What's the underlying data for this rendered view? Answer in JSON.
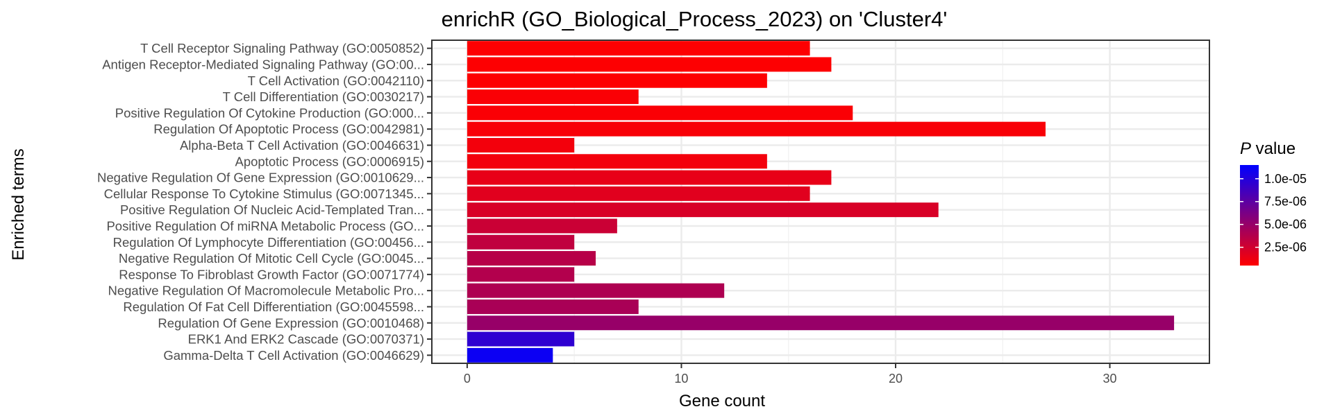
{
  "chart_data": {
    "type": "bar",
    "orientation": "horizontal",
    "title": "enrichR (GO_Biological_Process_2023) on 'Cluster4'",
    "xlabel": "Gene count",
    "ylabel": "Enriched terms",
    "xlim": [
      -1.65,
      34.65
    ],
    "x_ticks": [
      0,
      10,
      20,
      30
    ],
    "x_tick_labels": [
      "0",
      "10",
      "20",
      "30"
    ],
    "grid": true,
    "legend": {
      "title_italic": "P",
      "title_rest": " value",
      "placement": "right",
      "type": "colorbar",
      "color_low": "#ff0000",
      "color_high": "#0000ff",
      "range": [
        5e-07,
        1.15e-05
      ],
      "ticks": [
        1e-05,
        7.5e-06,
        5e-06,
        2.5e-06
      ],
      "tick_labels": [
        "1.0e-05",
        "7.5e-06",
        "5.0e-06",
        "2.5e-06"
      ]
    },
    "categories": [
      "T Cell Receptor Signaling Pathway (GO:0050852)",
      "Antigen Receptor-Mediated Signaling Pathway (GO:00...",
      "T Cell Activation (GO:0042110)",
      "T Cell Differentiation (GO:0030217)",
      "Positive Regulation Of Cytokine Production (GO:000...",
      "Regulation Of Apoptotic Process (GO:0042981)",
      "Alpha-Beta T Cell Activation (GO:0046631)",
      "Apoptotic Process (GO:0006915)",
      "Negative Regulation Of Gene Expression (GO:0010629...",
      "Cellular Response To Cytokine Stimulus (GO:0071345...",
      "Positive Regulation Of Nucleic Acid-Templated Tran...",
      "Positive Regulation Of miRNA Metabolic Process (GO...",
      "Regulation Of Lymphocyte Differentiation (GO:00456...",
      "Negative Regulation Of Mitotic Cell Cycle (GO:0045...",
      "Response To Fibroblast Growth Factor (GO:0071774)",
      "Negative Regulation Of Macromolecule Metabolic Pro...",
      "Regulation Of Fat Cell Differentiation (GO:0045598...",
      "Regulation Of Gene Expression (GO:0010468)",
      "ERK1 And ERK2 Cascade (GO:0070371)",
      "Gamma-Delta T Cell Activation (GO:0046629)"
    ],
    "values": [
      16,
      17,
      14,
      8,
      18,
      27,
      5,
      14,
      17,
      16,
      22,
      7,
      5,
      6,
      5,
      12,
      8,
      33,
      5,
      4
    ],
    "p_values": [
      6e-07,
      6e-07,
      6e-07,
      7e-07,
      7e-07,
      8e-07,
      1e-06,
      1e-06,
      1.5e-06,
      1.8e-06,
      2.2e-06,
      2.8e-06,
      3.2e-06,
      3.6e-06,
      3.8e-06,
      4e-06,
      4.2e-06,
      5e-06,
      9.5e-06,
      1.1e-05
    ]
  }
}
